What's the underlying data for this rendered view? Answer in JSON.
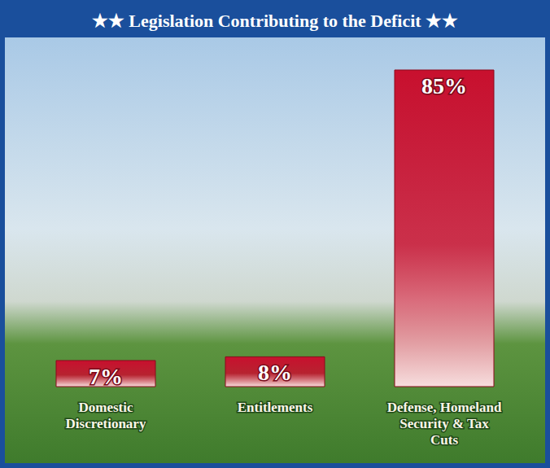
{
  "chart_data": {
    "type": "bar",
    "title": "★★ Legislation Contributing to the Deficit ★★",
    "categories": [
      "Domestic Discretionary",
      "Entitlements",
      "Defense, Homeland Security & Tax Cuts"
    ],
    "values": [
      7,
      8,
      85
    ],
    "value_labels": [
      "7%",
      "8%",
      "85%"
    ],
    "color": "#c8102e",
    "data_labels": true,
    "tick_labels": "x",
    "grid": false
  }
}
